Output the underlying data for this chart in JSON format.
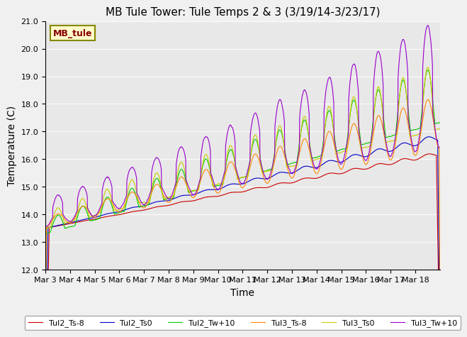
{
  "title": "MB Tule Tower: Tule Temps 2 & 3 (3/19/14-3/23/17)",
  "xlabel": "Time",
  "ylabel": "Temperature (C)",
  "ylim": [
    12.0,
    21.0
  ],
  "yticks": [
    12.0,
    13.0,
    14.0,
    15.0,
    16.0,
    17.0,
    18.0,
    19.0,
    20.0,
    21.0
  ],
  "xtick_labels": [
    "Mar 3",
    "Mar 4",
    "Mar 5",
    "Mar 6",
    "Mar 7",
    "Mar 8",
    "Mar 9",
    "Mar 10",
    "Mar 11",
    "Mar 12",
    "Mar 13",
    "Mar 14",
    "Mar 15",
    "Mar 16",
    "Mar 17",
    "Mar 18"
  ],
  "watermark_text": "MB_tule",
  "legend_entries": [
    "Tul2_Ts-8",
    "Tul2_Ts0",
    "Tul2_Tw+10",
    "Tul3_Ts-8",
    "Tul3_Ts0",
    "Tul3_Tw+10"
  ],
  "line_colors": [
    "#cc0000",
    "#0000cc",
    "#00cc00",
    "#ff8800",
    "#cccc00",
    "#9900cc"
  ],
  "background_color": "#e8e8e8",
  "fig_bg_color": "#f0f0f0",
  "title_fontsize": 11,
  "axis_label_fontsize": 10,
  "tick_fontsize": 8,
  "legend_fontsize": 8,
  "linewidth": 0.8
}
